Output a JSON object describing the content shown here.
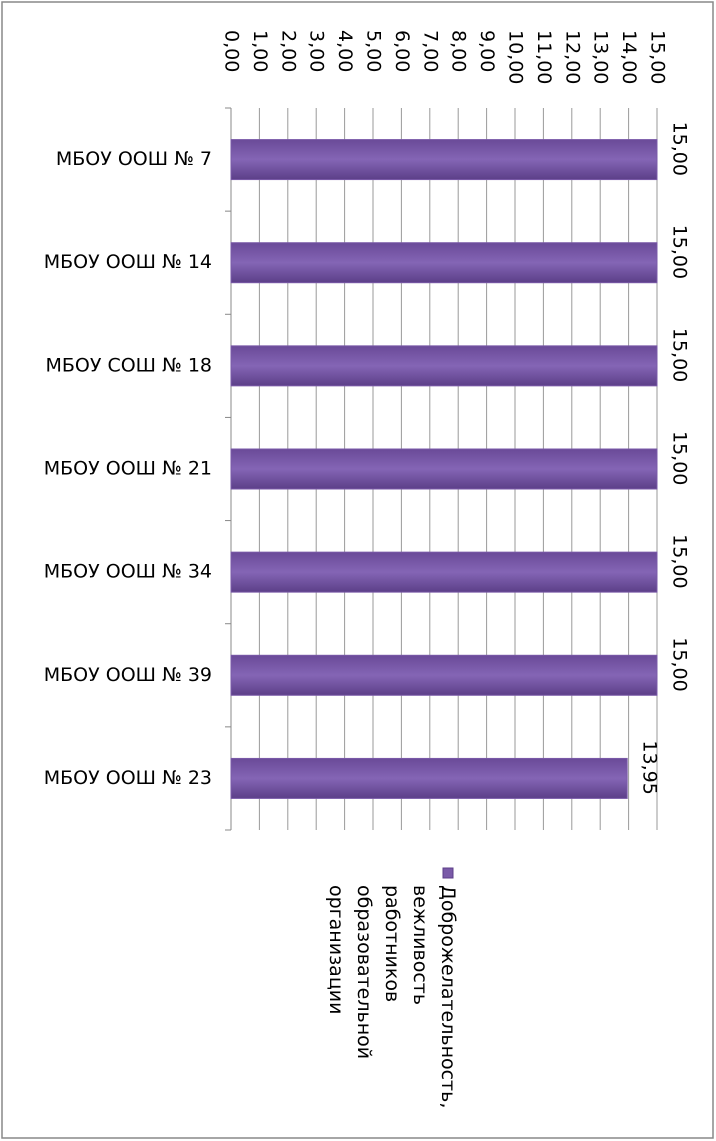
{
  "chart_data": {
    "type": "bar",
    "orientation": "horizontal",
    "categories": [
      "МБОУ ООШ № 7",
      "МБОУ ООШ № 14",
      "МБОУ СОШ № 18",
      "МБОУ ООШ № 21",
      "МБОУ ООШ № 34",
      "МБОУ ООШ № 39",
      "МБОУ ООШ № 23"
    ],
    "series": [
      {
        "name": "Доброжелательность, вежливость работников образовательной организации",
        "color": "#7a5aa8",
        "values": [
          15,
          15,
          15,
          15,
          15,
          15,
          13.95
        ],
        "value_labels": [
          "15,00",
          "15,00",
          "15,00",
          "15,00",
          "15,00",
          "15,00",
          "13,95"
        ]
      }
    ],
    "xlim": [
      0,
      15
    ],
    "xticks": [
      {
        "value": 0,
        "label": "0,00"
      },
      {
        "value": 1,
        "label": "1,00"
      },
      {
        "value": 2,
        "label": "2,00"
      },
      {
        "value": 3,
        "label": "3,00"
      },
      {
        "value": 4,
        "label": "4,00"
      },
      {
        "value": 5,
        "label": "5,00"
      },
      {
        "value": 6,
        "label": "6,00"
      },
      {
        "value": 7,
        "label": "7,00"
      },
      {
        "value": 8,
        "label": "8,00"
      },
      {
        "value": 9,
        "label": "9,00"
      },
      {
        "value": 10,
        "label": "10,00"
      },
      {
        "value": 11,
        "label": "11,00"
      },
      {
        "value": 12,
        "label": "12,00"
      },
      {
        "value": 13,
        "label": "13,00"
      },
      {
        "value": 14,
        "label": "14,00"
      },
      {
        "value": 15,
        "label": "15,00"
      }
    ],
    "grid": true
  }
}
